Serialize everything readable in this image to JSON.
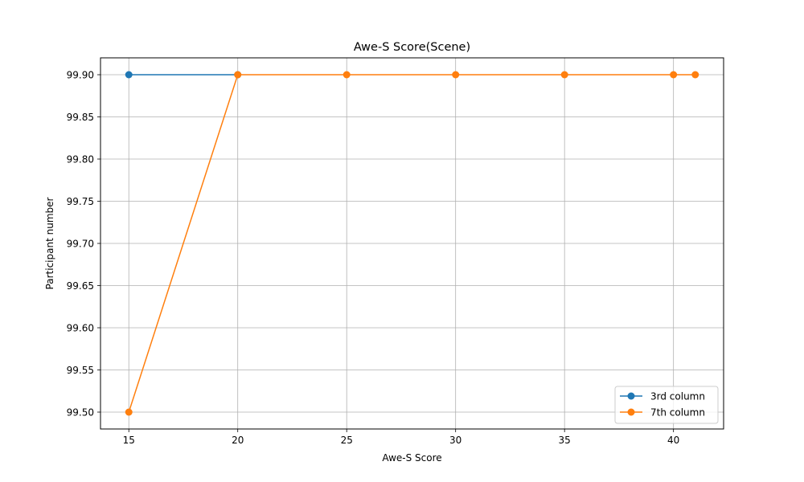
{
  "chart_data": {
    "type": "line",
    "title": "Awe-S Score(Scene)",
    "xlabel": "Awe-S Score",
    "ylabel": "Participant number",
    "xlim": [
      13.7,
      42.3
    ],
    "ylim": [
      99.48,
      99.92
    ],
    "xticks": [
      15,
      20,
      25,
      30,
      35,
      40
    ],
    "yticks": [
      99.5,
      99.55,
      99.6,
      99.65,
      99.7,
      99.75,
      99.8,
      99.85,
      99.9
    ],
    "ytick_labels": [
      "99.50",
      "99.55",
      "99.60",
      "99.65",
      "99.70",
      "99.75",
      "99.80",
      "99.85",
      "99.90"
    ],
    "grid": true,
    "legend_position": "bottom-right",
    "series": [
      {
        "name": "3rd column",
        "color": "#1f77b4",
        "marker": "circle",
        "x": [
          15,
          20
        ],
        "y": [
          99.9,
          99.9
        ]
      },
      {
        "name": "7th column",
        "color": "#ff7f0e",
        "marker": "circle",
        "x": [
          15,
          20,
          25,
          30,
          35,
          40,
          41
        ],
        "y": [
          99.5,
          99.9,
          99.9,
          99.9,
          99.9,
          99.9,
          99.9
        ]
      }
    ]
  }
}
